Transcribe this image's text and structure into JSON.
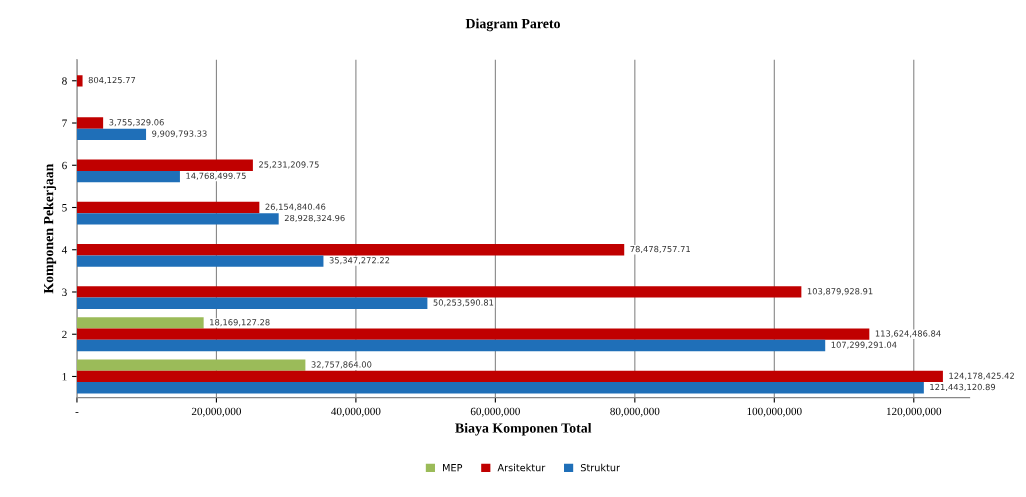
{
  "chart_data": {
    "type": "bar",
    "orientation": "horizontal",
    "title": "Diagram Pareto",
    "xlabel": "Biaya Komponen Total",
    "ylabel": "Komponen Pekerjaan",
    "categories": [
      "8",
      "7",
      "6",
      "5",
      "4",
      "3",
      "2",
      "1"
    ],
    "series": [
      {
        "name": "MEP",
        "color": "#9bbb59",
        "values": [
          null,
          null,
          null,
          null,
          null,
          null,
          18169127.28,
          32757864.0
        ],
        "value_labels": [
          null,
          null,
          null,
          null,
          null,
          null,
          "18,169,127.28",
          "32,757,864.00"
        ]
      },
      {
        "name": "Arsitektur",
        "color": "#c00000",
        "values": [
          804125.77,
          3755329.06,
          25231209.75,
          26154840.46,
          78478757.71,
          103879928.91,
          113624486.84,
          124178425.42
        ],
        "value_labels": [
          "804,125.77",
          "3,755,329.06",
          "25,231,209.75",
          "26,154,840.46",
          "78,478,757.71",
          "103,879,928.91",
          "113,624,486.84",
          "124,178,425.42"
        ]
      },
      {
        "name": "Struktur",
        "color": "#1f6fb8",
        "values": [
          null,
          9909793.33,
          14768499.75,
          28928324.96,
          35347272.22,
          50253590.81,
          107299291.04,
          121443120.89
        ],
        "value_labels": [
          null,
          "9,909,793.33",
          "14,768,499.75",
          "28,928,324.96",
          "35,347,272.22",
          "50,253,590.81",
          "107,299,291.04",
          "121,443,120.89"
        ]
      }
    ],
    "xlim": [
      0,
      128000000
    ],
    "xticks": [
      {
        "value": 0,
        "label": "-"
      },
      {
        "value": 20000000,
        "label": "20,000,000"
      },
      {
        "value": 40000000,
        "label": "40,000,000"
      },
      {
        "value": 60000000,
        "label": "60,000,000"
      },
      {
        "value": 80000000,
        "label": "80,000,000"
      },
      {
        "value": 100000000,
        "label": "100,000,000"
      },
      {
        "value": 120000000,
        "label": "120,000,000"
      }
    ],
    "grid": "x",
    "legend": "bottom"
  }
}
